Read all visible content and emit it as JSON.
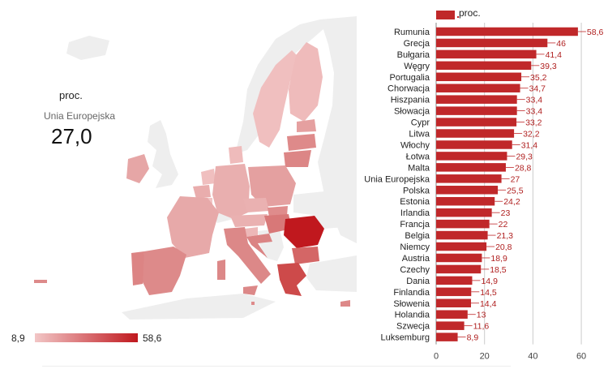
{
  "map": {
    "unit_label": "proc.",
    "region_label": "Unia Europejska",
    "region_value": "27,0",
    "scale_min_label": "8,9",
    "scale_max_label": "58,6",
    "scale_min_value": 8.9,
    "scale_max_value": 58.6,
    "color_low": "#f2c6c6",
    "color_high": "#c0181e",
    "color_non_eu": "#eeeeee"
  },
  "chart_data": {
    "type": "bar",
    "orientation": "horizontal",
    "legend": {
      "label": "proc.",
      "position": "top"
    },
    "color": "#c0282a",
    "categories": [
      "Rumunia",
      "Grecja",
      "Bułgaria",
      "Węgry",
      "Portugalia",
      "Chorwacja",
      "Hiszpania",
      "Słowacja",
      "Cypr",
      "Litwa",
      "Włochy",
      "Łotwa",
      "Malta",
      "Unia Europejska",
      "Polska",
      "Estonia",
      "Irlandia",
      "Francja",
      "Belgia",
      "Niemcy",
      "Austria",
      "Czechy",
      "Dania",
      "Finlandia",
      "Słowenia",
      "Holandia",
      "Szwecja",
      "Luksemburg"
    ],
    "values": [
      58.6,
      46,
      41.4,
      39.3,
      35.2,
      34.7,
      33.4,
      33.4,
      33.2,
      32.2,
      31.4,
      29.3,
      28.8,
      27,
      25.5,
      24.2,
      23,
      22,
      21.3,
      20.8,
      18.9,
      18.5,
      14.9,
      14.5,
      14.4,
      13,
      11.6,
      8.9
    ],
    "value_labels": [
      "58,6",
      "46",
      "41,4",
      "39,3",
      "35,2",
      "34,7",
      "33,4",
      "33,4",
      "33,2",
      "32,2",
      "31,4",
      "29,3",
      "28,8",
      "27",
      "25,5",
      "24,2",
      "23",
      "22",
      "21,3",
      "20,8",
      "18,9",
      "18,5",
      "14,9",
      "14,5",
      "14,4",
      "13",
      "11,6",
      "8,9"
    ],
    "xlim": [
      0,
      65
    ],
    "xticks": [
      0,
      20,
      40,
      60
    ],
    "grid": true
  }
}
